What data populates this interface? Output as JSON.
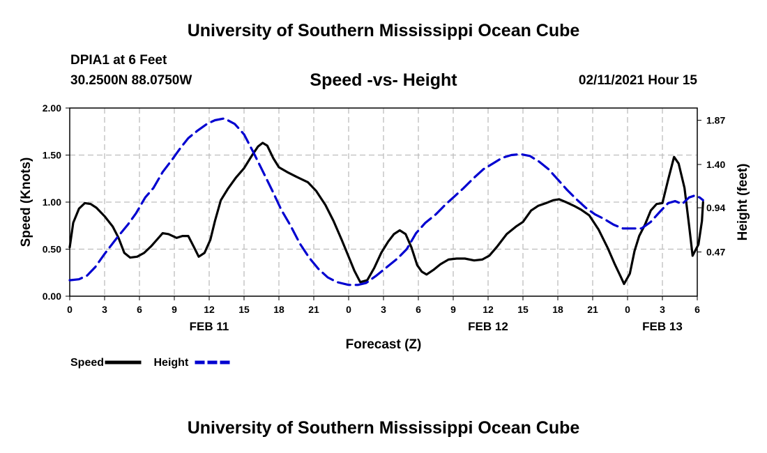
{
  "header": {
    "title": "University of Southern Mississippi Ocean Cube",
    "station": "DPIA1 at 6 Feet",
    "coords": "30.2500N 88.0750W",
    "datetime": "02/11/2021 Hour 15",
    "footer": "University of Southern Mississippi Ocean Cube"
  },
  "chart_data": {
    "type": "line",
    "title": "Speed -vs- Height",
    "xlabel": "Forecast (Z)",
    "ylabel": "Speed (Knots)",
    "y2label": "Height (feet)",
    "xlim": [
      0,
      54
    ],
    "ylim": [
      0,
      2.0
    ],
    "y2lim": [
      0.0,
      2.0
    ],
    "grid": true,
    "legend_position": "bottom-left",
    "x_ticks": [
      {
        "x": 0,
        "label": "0"
      },
      {
        "x": 3,
        "label": "3"
      },
      {
        "x": 6,
        "label": "6"
      },
      {
        "x": 9,
        "label": "9"
      },
      {
        "x": 12,
        "label": "12"
      },
      {
        "x": 15,
        "label": "15"
      },
      {
        "x": 18,
        "label": "18"
      },
      {
        "x": 21,
        "label": "21"
      },
      {
        "x": 24,
        "label": "0"
      },
      {
        "x": 27,
        "label": "3"
      },
      {
        "x": 30,
        "label": "6"
      },
      {
        "x": 33,
        "label": "9"
      },
      {
        "x": 36,
        "label": "12"
      },
      {
        "x": 39,
        "label": "15"
      },
      {
        "x": 42,
        "label": "18"
      },
      {
        "x": 45,
        "label": "21"
      },
      {
        "x": 48,
        "label": "0"
      },
      {
        "x": 51,
        "label": "3"
      },
      {
        "x": 54,
        "label": "6"
      }
    ],
    "date_labels": [
      {
        "x": 12,
        "label": "FEB 11"
      },
      {
        "x": 36,
        "label": "FEB 12"
      },
      {
        "x": 51,
        "label": "FEB 13"
      }
    ],
    "y_ticks": [
      {
        "y": 0.0,
        "label": "0.00"
      },
      {
        "y": 0.5,
        "label": "0.50"
      },
      {
        "y": 1.0,
        "label": "1.00"
      },
      {
        "y": 1.5,
        "label": "1.50"
      },
      {
        "y": 2.0,
        "label": "2.00"
      }
    ],
    "y2_ticks": [
      {
        "y": 0.47,
        "label": "0.47"
      },
      {
        "y": 0.94,
        "label": "0.94"
      },
      {
        "y": 1.4,
        "label": "1.40"
      },
      {
        "y": 1.87,
        "label": "1.87"
      }
    ],
    "series": [
      {
        "name": "Speed",
        "axis": "left",
        "color": "#000000",
        "dash": "solid",
        "points": [
          [
            0,
            0.52
          ],
          [
            0.3,
            0.78
          ],
          [
            0.8,
            0.93
          ],
          [
            1.3,
            0.99
          ],
          [
            1.8,
            0.98
          ],
          [
            2.3,
            0.94
          ],
          [
            3,
            0.85
          ],
          [
            3.7,
            0.74
          ],
          [
            4.2,
            0.62
          ],
          [
            4.7,
            0.46
          ],
          [
            5.2,
            0.41
          ],
          [
            5.8,
            0.42
          ],
          [
            6.4,
            0.46
          ],
          [
            7,
            0.53
          ],
          [
            7.5,
            0.6
          ],
          [
            8,
            0.67
          ],
          [
            8.5,
            0.66
          ],
          [
            9.2,
            0.62
          ],
          [
            9.7,
            0.64
          ],
          [
            10.2,
            0.64
          ],
          [
            10.7,
            0.52
          ],
          [
            11.1,
            0.42
          ],
          [
            11.6,
            0.46
          ],
          [
            12.1,
            0.6
          ],
          [
            12.5,
            0.8
          ],
          [
            13,
            1.02
          ],
          [
            13.6,
            1.14
          ],
          [
            14.3,
            1.26
          ],
          [
            15,
            1.36
          ],
          [
            15.7,
            1.5
          ],
          [
            16.2,
            1.59
          ],
          [
            16.6,
            1.63
          ],
          [
            17,
            1.6
          ],
          [
            17.5,
            1.47
          ],
          [
            18,
            1.37
          ],
          [
            18.7,
            1.32
          ],
          [
            19.5,
            1.27
          ],
          [
            20.5,
            1.21
          ],
          [
            21.2,
            1.12
          ],
          [
            22,
            0.97
          ],
          [
            22.7,
            0.8
          ],
          [
            23.4,
            0.6
          ],
          [
            24,
            0.42
          ],
          [
            24.5,
            0.27
          ],
          [
            25,
            0.15
          ],
          [
            25.6,
            0.17
          ],
          [
            26.2,
            0.3
          ],
          [
            26.8,
            0.46
          ],
          [
            27.4,
            0.58
          ],
          [
            27.9,
            0.66
          ],
          [
            28.4,
            0.7
          ],
          [
            28.9,
            0.66
          ],
          [
            29.4,
            0.52
          ],
          [
            29.9,
            0.33
          ],
          [
            30.3,
            0.26
          ],
          [
            30.7,
            0.23
          ],
          [
            31.3,
            0.28
          ],
          [
            31.9,
            0.34
          ],
          [
            32.6,
            0.39
          ],
          [
            33.3,
            0.4
          ],
          [
            34,
            0.4
          ],
          [
            34.8,
            0.38
          ],
          [
            35.5,
            0.39
          ],
          [
            36.1,
            0.43
          ],
          [
            36.8,
            0.53
          ],
          [
            37.6,
            0.66
          ],
          [
            38.4,
            0.74
          ],
          [
            39,
            0.79
          ],
          [
            39.7,
            0.91
          ],
          [
            40.3,
            0.96
          ],
          [
            41,
            0.99
          ],
          [
            41.6,
            1.02
          ],
          [
            42.1,
            1.03
          ],
          [
            42.7,
            1.0
          ],
          [
            43.4,
            0.96
          ],
          [
            44,
            0.92
          ],
          [
            44.7,
            0.86
          ],
          [
            45.5,
            0.71
          ],
          [
            46.3,
            0.51
          ],
          [
            46.9,
            0.34
          ],
          [
            47.4,
            0.21
          ],
          [
            47.7,
            0.13
          ],
          [
            48.2,
            0.24
          ],
          [
            48.6,
            0.48
          ],
          [
            49,
            0.64
          ],
          [
            49.5,
            0.76
          ],
          [
            50,
            0.91
          ],
          [
            50.5,
            0.98
          ],
          [
            51,
            0.99
          ],
          [
            51.5,
            1.24
          ],
          [
            52,
            1.48
          ],
          [
            52.4,
            1.41
          ],
          [
            52.9,
            1.15
          ],
          [
            53.3,
            0.75
          ],
          [
            53.6,
            0.43
          ],
          [
            54.1,
            0.55
          ],
          [
            54.4,
            0.8
          ],
          [
            54.5,
            1.0
          ]
        ]
      },
      {
        "name": "Height",
        "axis": "right",
        "color": "#0000d0",
        "dash": "dashed",
        "points": [
          [
            0,
            0.17
          ],
          [
            0.8,
            0.18
          ],
          [
            1.5,
            0.22
          ],
          [
            2.2,
            0.31
          ],
          [
            3,
            0.45
          ],
          [
            4,
            0.61
          ],
          [
            5,
            0.76
          ],
          [
            5.7,
            0.88
          ],
          [
            6.5,
            1.05
          ],
          [
            7.2,
            1.15
          ],
          [
            8,
            1.32
          ],
          [
            8.8,
            1.45
          ],
          [
            9.5,
            1.57
          ],
          [
            10.2,
            1.68
          ],
          [
            11,
            1.76
          ],
          [
            11.8,
            1.83
          ],
          [
            12.5,
            1.87
          ],
          [
            13.3,
            1.89
          ],
          [
            14.2,
            1.83
          ],
          [
            15,
            1.72
          ],
          [
            15.8,
            1.53
          ],
          [
            16.6,
            1.33
          ],
          [
            17.4,
            1.13
          ],
          [
            18.2,
            0.92
          ],
          [
            19,
            0.75
          ],
          [
            19.8,
            0.56
          ],
          [
            20.6,
            0.41
          ],
          [
            21.4,
            0.29
          ],
          [
            22.2,
            0.2
          ],
          [
            23,
            0.15
          ],
          [
            24,
            0.12
          ],
          [
            24.8,
            0.12
          ],
          [
            25.5,
            0.14
          ],
          [
            26.4,
            0.22
          ],
          [
            27.3,
            0.31
          ],
          [
            28.2,
            0.4
          ],
          [
            29,
            0.5
          ],
          [
            29.8,
            0.67
          ],
          [
            30.6,
            0.78
          ],
          [
            31.5,
            0.87
          ],
          [
            32.3,
            0.97
          ],
          [
            33.1,
            1.06
          ],
          [
            33.9,
            1.15
          ],
          [
            34.8,
            1.26
          ],
          [
            35.6,
            1.35
          ],
          [
            36.4,
            1.41
          ],
          [
            37.2,
            1.47
          ],
          [
            38,
            1.5
          ],
          [
            38.8,
            1.51
          ],
          [
            39.6,
            1.49
          ],
          [
            40.4,
            1.43
          ],
          [
            41.2,
            1.35
          ],
          [
            42,
            1.24
          ],
          [
            42.8,
            1.13
          ],
          [
            43.6,
            1.03
          ],
          [
            44.4,
            0.94
          ],
          [
            45.2,
            0.87
          ],
          [
            46,
            0.82
          ],
          [
            46.8,
            0.76
          ],
          [
            47.6,
            0.72
          ],
          [
            48.4,
            0.72
          ],
          [
            49.2,
            0.72
          ],
          [
            50,
            0.79
          ],
          [
            50.8,
            0.9
          ],
          [
            51.5,
            0.99
          ],
          [
            52.1,
            1.01
          ],
          [
            52.7,
            0.98
          ],
          [
            53.3,
            1.05
          ],
          [
            53.8,
            1.07
          ],
          [
            54.2,
            1.05
          ],
          [
            54.5,
            1.02
          ]
        ]
      }
    ]
  }
}
